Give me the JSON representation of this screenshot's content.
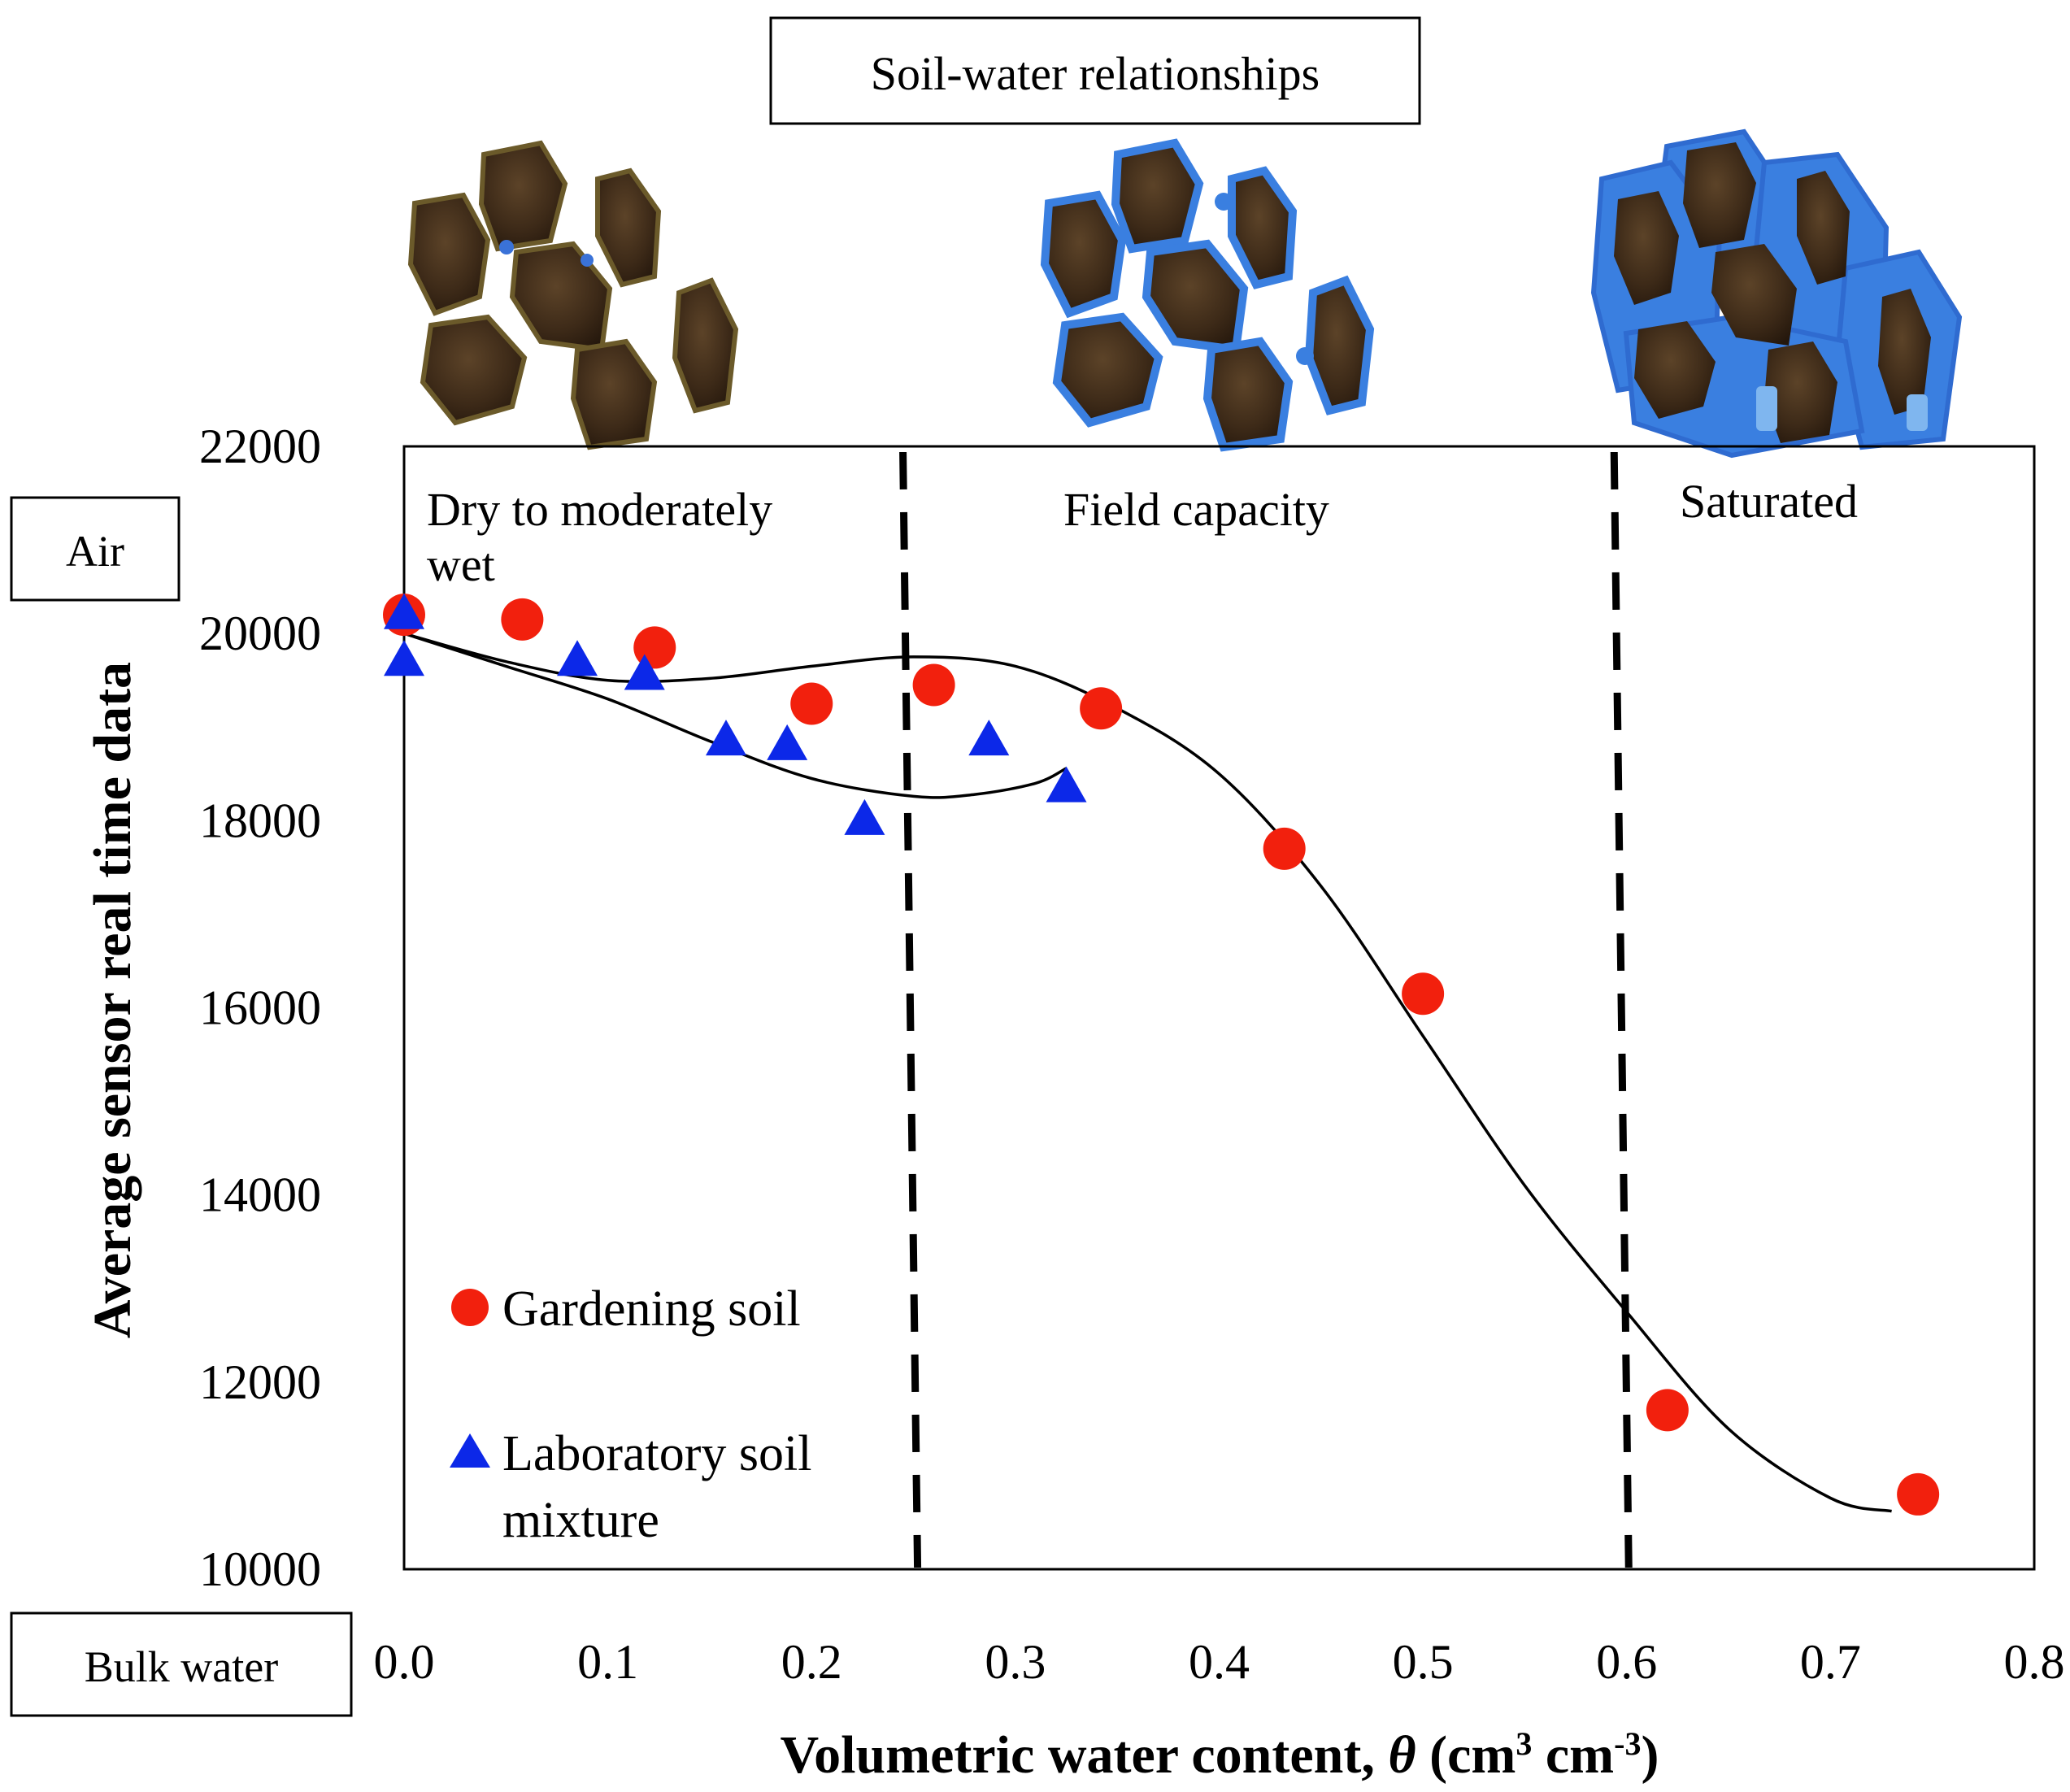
{
  "header": {
    "title": "Soil-water relationships"
  },
  "illustrations": [
    {
      "state": "dry",
      "icon": "dry-soil-aggregates-icon"
    },
    {
      "state": "field-capacity",
      "icon": "field-capacity-soil-aggregates-icon"
    },
    {
      "state": "saturated",
      "icon": "saturated-soil-aggregates-icon"
    }
  ],
  "side_labels": {
    "top": "Air",
    "bottom": "Bulk water"
  },
  "regions": [
    {
      "lines": [
        "Dry to moderately",
        "wet"
      ]
    },
    {
      "lines": [
        "Field capacity"
      ]
    },
    {
      "lines": [
        "Saturated"
      ]
    }
  ],
  "chart_data": {
    "type": "scatter",
    "xlabel_parts": [
      "Volumetric water content, ",
      "θ",
      " (cm",
      "3",
      " cm",
      "-3",
      ")"
    ],
    "ylabel": "Average sensor real time data",
    "xlim": [
      0.0,
      0.8
    ],
    "ylim": [
      10000,
      22000
    ],
    "xticks": [
      "0.0",
      "0.1",
      "0.2",
      "0.3",
      "0.4",
      "0.5",
      "0.6",
      "0.7",
      "0.8"
    ],
    "yticks": [
      "22000",
      "20000",
      "18000",
      "16000",
      "14000",
      "12000",
      "10000"
    ],
    "dividers_x": [
      0.252,
      0.601
    ],
    "series": [
      {
        "name": "Gardening soil",
        "marker": "circle",
        "color": "#f2200d",
        "x": [
          0.0,
          0.058,
          0.123,
          0.2,
          0.26,
          0.342,
          0.432,
          0.5,
          0.62,
          0.743
        ],
        "y": [
          20200,
          20150,
          19850,
          19250,
          19450,
          19200,
          17700,
          16150,
          11700,
          10800
        ],
        "trendline": {
          "x": [
            0.0,
            0.05,
            0.1,
            0.15,
            0.2,
            0.25,
            0.3,
            0.35,
            0.4,
            0.45,
            0.5,
            0.55,
            0.6,
            0.65,
            0.7,
            0.73
          ],
          "y": [
            20000,
            19700,
            19500,
            19520,
            19650,
            19750,
            19650,
            19200,
            18500,
            17300,
            15700,
            14100,
            12750,
            11500,
            10760,
            10620
          ]
        }
      },
      {
        "name_lines": [
          "Laboratory soil",
          "mixture"
        ],
        "marker": "triangle",
        "color": "#0c28e8",
        "x": [
          0.0,
          0.0,
          0.085,
          0.118,
          0.158,
          0.188,
          0.226,
          0.287,
          0.325
        ],
        "y": [
          20200,
          19700,
          19700,
          19550,
          18850,
          18800,
          18000,
          18850,
          18350
        ],
        "trendline": {
          "x": [
            0.0,
            0.05,
            0.1,
            0.15,
            0.2,
            0.25,
            0.28,
            0.31,
            0.325
          ],
          "y": [
            20000,
            19650,
            19300,
            18850,
            18450,
            18260,
            18280,
            18400,
            18560
          ]
        }
      }
    ]
  }
}
